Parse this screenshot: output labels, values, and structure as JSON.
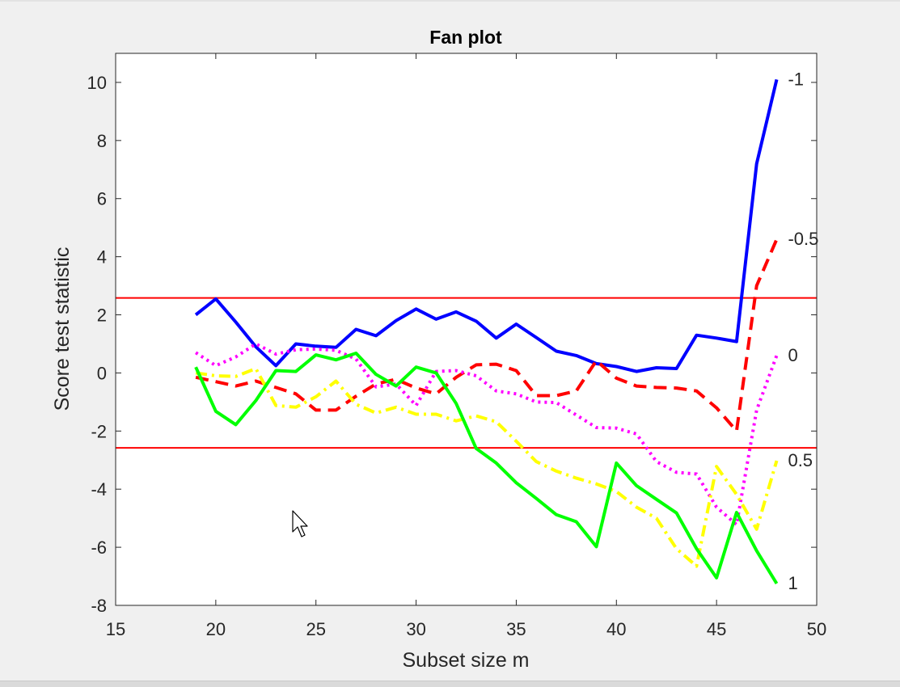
{
  "chart_data": {
    "type": "line",
    "title": "Fan plot",
    "xlabel": "Subset size m",
    "ylabel": "Score test statistic",
    "xlim": [
      15,
      50
    ],
    "ylim": [
      -8,
      11
    ],
    "xticks": [
      15,
      20,
      25,
      30,
      35,
      40,
      45,
      50
    ],
    "yticks": [
      -8,
      -6,
      -4,
      -2,
      0,
      2,
      4,
      6,
      8,
      10
    ],
    "grid": false,
    "reference_lines": [
      2.58,
      -2.58
    ],
    "x": [
      19,
      20,
      21,
      22,
      23,
      24,
      25,
      26,
      27,
      28,
      29,
      30,
      31,
      32,
      33,
      34,
      35,
      36,
      37,
      38,
      39,
      40,
      41,
      42,
      43,
      44,
      45,
      46,
      47,
      48
    ],
    "series": [
      {
        "name": "-1",
        "color": "#0000ff",
        "style": "solid",
        "values": [
          2.0,
          2.55,
          1.75,
          0.9,
          0.25,
          1.0,
          0.92,
          0.88,
          1.5,
          1.28,
          1.8,
          2.2,
          1.85,
          2.1,
          1.78,
          1.2,
          1.68,
          1.22,
          0.75,
          0.6,
          0.32,
          0.22,
          0.05,
          0.18,
          0.15,
          1.3,
          1.2,
          1.08,
          7.2,
          10.1
        ]
      },
      {
        "name": "-0.5",
        "color": "#ff0000",
        "style": "dashed",
        "values": [
          -0.15,
          -0.3,
          -0.45,
          -0.28,
          -0.5,
          -0.72,
          -1.28,
          -1.28,
          -0.8,
          -0.38,
          -0.22,
          -0.52,
          -0.72,
          -0.15,
          0.28,
          0.3,
          0.08,
          -0.78,
          -0.78,
          -0.62,
          0.42,
          -0.18,
          -0.45,
          -0.5,
          -0.52,
          -0.62,
          -1.2,
          -2.0,
          3.0,
          4.6
        ]
      },
      {
        "name": "0",
        "color": "#ff00ff",
        "style": "dotted",
        "values": [
          0.7,
          0.25,
          0.55,
          1.0,
          0.65,
          0.8,
          0.82,
          0.78,
          0.48,
          -0.48,
          -0.38,
          -1.12,
          0.05,
          0.08,
          -0.1,
          -0.62,
          -0.72,
          -1.0,
          -1.02,
          -1.45,
          -1.88,
          -1.9,
          -2.1,
          -3.05,
          -3.42,
          -3.48,
          -4.62,
          -5.22,
          -1.28,
          0.6
        ]
      },
      {
        "name": "0.5",
        "color": "#ffff00",
        "style": "dash-dot",
        "values": [
          0.0,
          -0.1,
          -0.12,
          0.15,
          -1.12,
          -1.18,
          -0.82,
          -0.28,
          -1.08,
          -1.38,
          -1.18,
          -1.42,
          -1.42,
          -1.65,
          -1.48,
          -1.68,
          -2.35,
          -3.05,
          -3.38,
          -3.62,
          -3.82,
          -4.08,
          -4.62,
          -5.0,
          -6.05,
          -6.65,
          -3.22,
          -4.18,
          -5.38,
          -3.02
        ]
      },
      {
        "name": "1",
        "color": "#00ff00",
        "style": "solid",
        "values": [
          0.2,
          -1.32,
          -1.78,
          -0.95,
          0.08,
          0.05,
          0.62,
          0.45,
          0.68,
          -0.05,
          -0.45,
          0.2,
          0.0,
          -1.05,
          -2.6,
          -3.1,
          -3.78,
          -4.32,
          -4.88,
          -5.12,
          -5.98,
          -3.1,
          -3.88,
          -4.35,
          -4.82,
          -6.05,
          -7.05,
          -4.8,
          -6.12,
          -7.25
        ]
      }
    ],
    "series_labels": [
      "-1",
      "-0.5",
      "0",
      "0.5",
      "1"
    ]
  }
}
